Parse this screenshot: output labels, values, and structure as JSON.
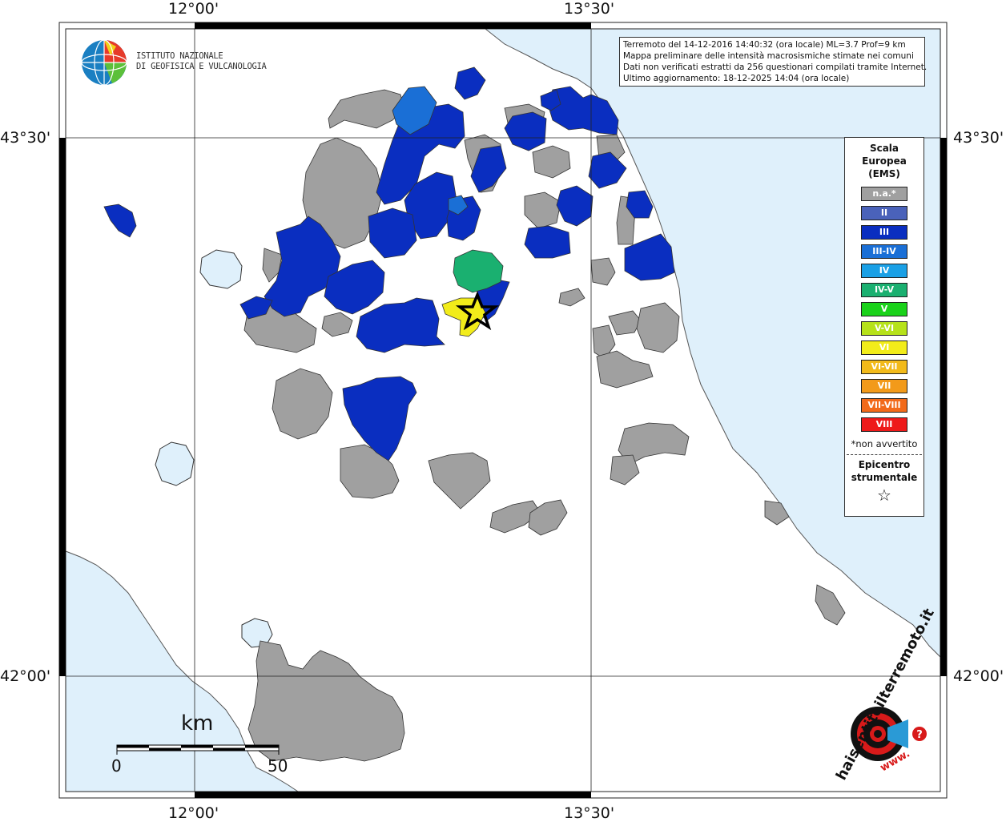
{
  "coords": {
    "lon_left": "12°00'",
    "lon_right": "13°30'",
    "lat_top": "43°30'",
    "lat_bottom": "42°00'"
  },
  "institute": {
    "line1": "ISTITUTO NAZIONALE",
    "line2": "DI GEOFISICA E VULCANOLOGIA"
  },
  "info": {
    "line1": "Terremoto del 14-12-2016 14:40:32 (ora locale) ML=3.7 Prof=9 km",
    "line2": "Mappa preliminare delle intensità macrosismiche stimate nei comuni",
    "line3": "Dati non verificati estratti da 256 questionari compilati tramite Internet.",
    "line4": "Ultimo aggiornamento: 18-12-2025 14:04 (ora locale)"
  },
  "legend": {
    "title1": "Scala",
    "title2": "Europea",
    "title3": "(EMS)",
    "items": [
      {
        "label": "n.a.*",
        "color": "#a0a0a0"
      },
      {
        "label": "II",
        "color": "#4a62ba"
      },
      {
        "label": "III",
        "color": "#0a2ec0"
      },
      {
        "label": "III-IV",
        "color": "#1a6fd6"
      },
      {
        "label": "IV",
        "color": "#1aa0e6"
      },
      {
        "label": "IV-V",
        "color": "#1ab070"
      },
      {
        "label": "V",
        "color": "#1ad21a"
      },
      {
        "label": "V-VI",
        "color": "#b6e21a"
      },
      {
        "label": "VI",
        "color": "#f2ec1a"
      },
      {
        "label": "VI-VII",
        "color": "#f2ba1a"
      },
      {
        "label": "VII",
        "color": "#f29a1a"
      },
      {
        "label": "VII-VIII",
        "color": "#f26a1a"
      },
      {
        "label": "VIII",
        "color": "#ee1a1a"
      }
    ],
    "note": "*non avvertito",
    "epi1": "Epicentro",
    "epi2": "strumentale",
    "star": "☆"
  },
  "scale": {
    "unit": "km",
    "start": "0",
    "end": "50"
  },
  "colors": {
    "sea": "#dff0fb",
    "gray": "#a0a0a0",
    "ems3": "#0a2ec0",
    "ems4v": "#1ab070",
    "ems6": "#f2ec1a"
  },
  "brand": {
    "text": "haisentitoilterremoto.it",
    "prefix": "www.",
    "mark": "?"
  }
}
